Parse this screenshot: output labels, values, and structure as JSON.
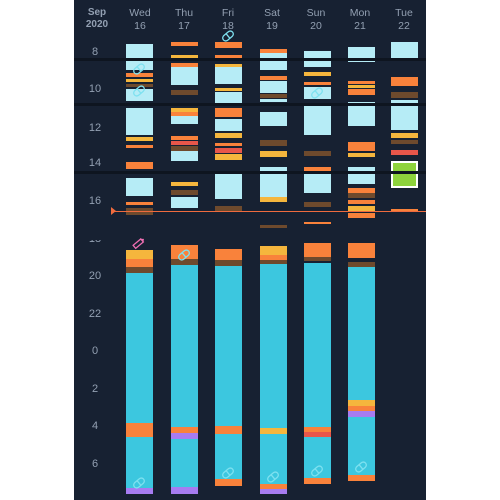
{
  "month": "Sep",
  "year": "2020",
  "days": [
    {
      "dow": "Wed",
      "date": "16"
    },
    {
      "dow": "Thu",
      "date": "17"
    },
    {
      "dow": "Fri",
      "date": "18"
    },
    {
      "dow": "Sat",
      "date": "19"
    },
    {
      "dow": "Sun",
      "date": "20"
    },
    {
      "dow": "Mon",
      "date": "21"
    },
    {
      "dow": "Tue",
      "date": "22"
    }
  ],
  "hours": [
    "8",
    "10",
    "12",
    "14",
    "16",
    "18",
    "20",
    "22",
    "0",
    "2",
    "4",
    "6"
  ],
  "colors": {
    "background": "#172132",
    "text": "#93a0b2",
    "awake_light": "#b6ecf6",
    "asleep": "#3cc7df",
    "orange": "#f9823b",
    "brown": "#6e4a2d",
    "gold": "#f5b63d",
    "red": "#e8564a",
    "purple": "#a77cf1",
    "green": "#8ed33c",
    "now_line": "#ef6b3e",
    "pill_icon": "#7ee1f0",
    "pencil_icon": "#f06fb3"
  },
  "icons": [
    "pill-icon",
    "pencil-icon"
  ]
}
